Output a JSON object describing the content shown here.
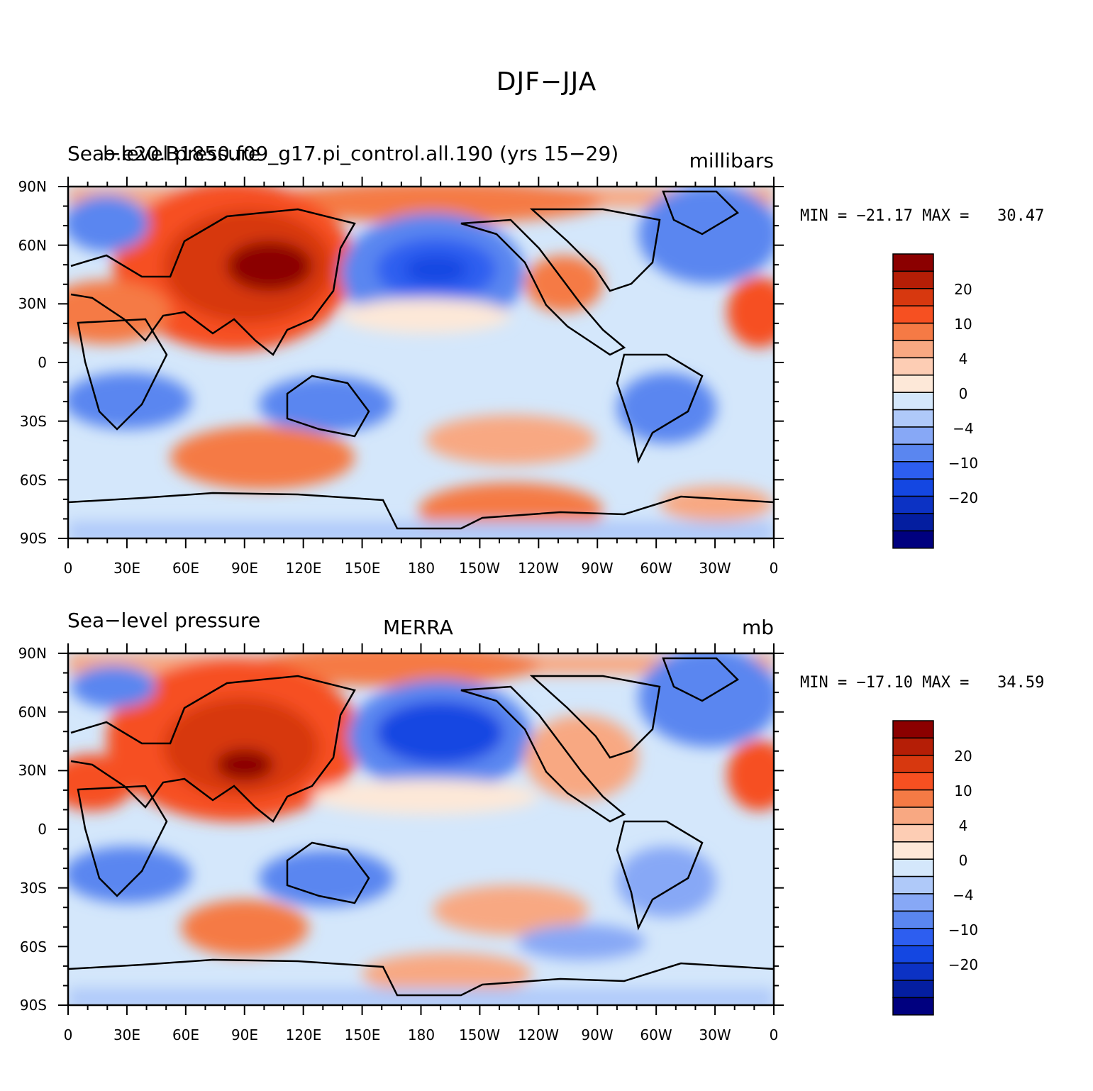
{
  "title": "DJF−JJA",
  "colorbar": {
    "colors": [
      "#8b0000",
      "#b51e06",
      "#d7380f",
      "#f65021",
      "#f57a45",
      "#f8a882",
      "#fdcdb4",
      "#fde8d8",
      "#d4e7fb",
      "#afc9f9",
      "#87a8f6",
      "#5a86f0",
      "#2d5ef0",
      "#1447e2",
      "#0c32c4",
      "#041ea0",
      "#00007f"
    ],
    "tick_labels": [
      "20",
      "10",
      "4",
      "0",
      "−4",
      "−10",
      "−20"
    ]
  },
  "panels": [
    {
      "left_label": "Sea−level pressure",
      "overlay_label": "b.e20.B1850.f09_g17.pi_control.all.190 (yrs 15−29)",
      "center_label": "",
      "right_label": "millibars",
      "min_label": "MIN = −21.17",
      "max_label": "MAX =   30.47"
    },
    {
      "left_label": "Sea−level pressure",
      "overlay_label": "",
      "center_label": "MERRA",
      "right_label": "mb",
      "min_label": "MIN = −17.10",
      "max_label": "MAX =   34.59"
    }
  ],
  "map_axes": {
    "lat_labels": [
      "90N",
      "60N",
      "30N",
      "0",
      "30S",
      "60S",
      "90S"
    ],
    "lon_labels": [
      "0",
      "30E",
      "60E",
      "90E",
      "120E",
      "150E",
      "180",
      "150W",
      "120W",
      "90W",
      "60W",
      "30W",
      "0"
    ]
  }
}
